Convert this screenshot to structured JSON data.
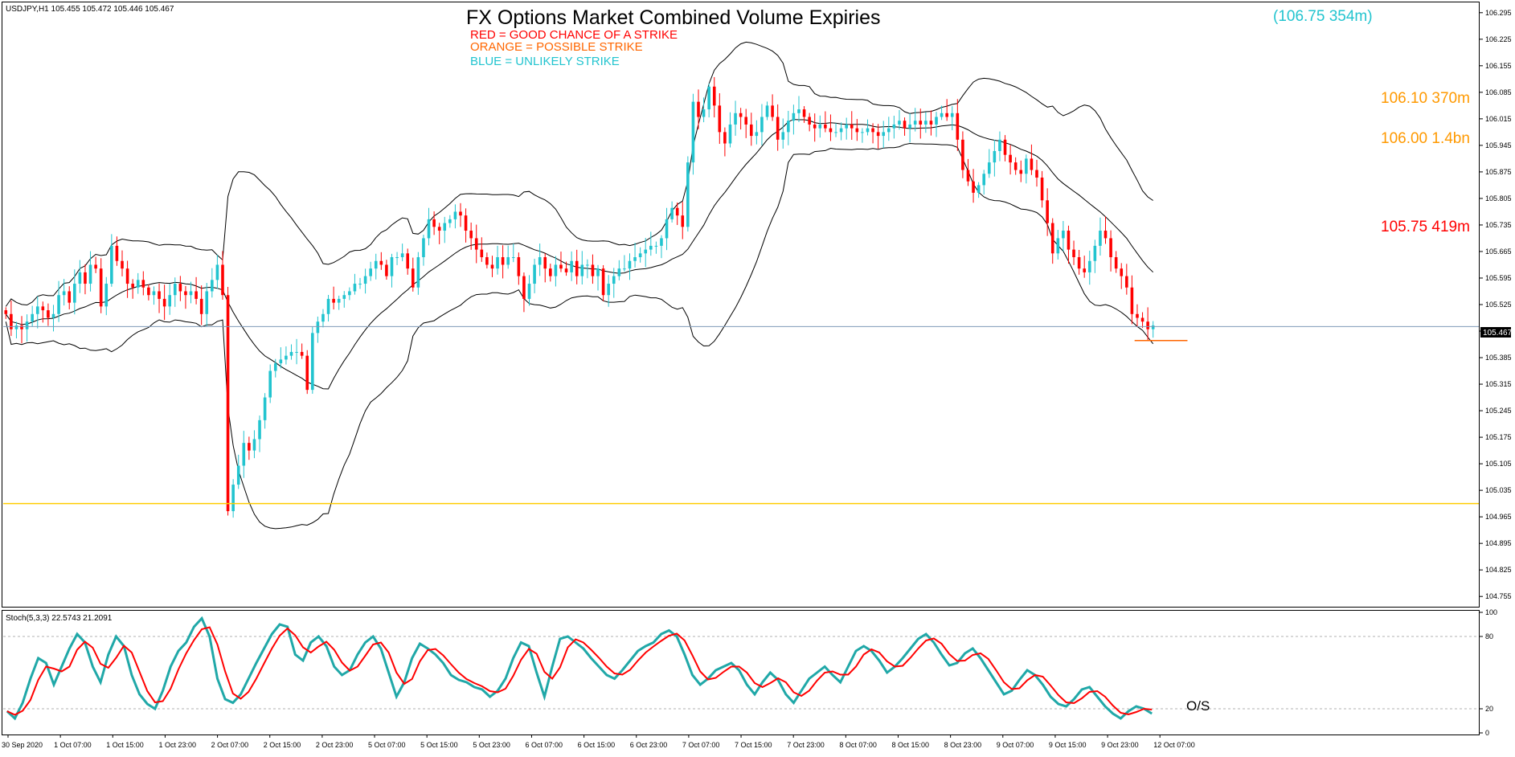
{
  "chart_data": {
    "type": "candlestick",
    "symbol_header": "USDJPY,H1  105.455 105.472 105.446 105.467",
    "title": "FX Options Market Combined Volume Expiries",
    "legend": [
      {
        "label": "RED = GOOD CHANCE OF A STRIKE",
        "color": "#ff0000"
      },
      {
        "label": "ORANGE = POSSIBLE STRIKE",
        "color": "#ff6600"
      },
      {
        "label": "BLUE = UNLIKELY STRIKE",
        "color": "#22c4cf"
      }
    ],
    "strike_labels": [
      {
        "text": "(106.75 354m)",
        "level": 106.75,
        "color": "#22c4cf"
      },
      {
        "text": "106.10 370m",
        "level": 106.1,
        "color": "#ff9900"
      },
      {
        "text": "106.00 1.4bn",
        "level": 106.0,
        "color": "#ff9900"
      },
      {
        "text": "105.75 419m",
        "level": 105.75,
        "color": "#ff0000"
      }
    ],
    "current_price": "105.467",
    "current_price_value": 105.467,
    "yellow_line_level": 105.0,
    "price_ylim": [
      104.73,
      106.32
    ],
    "price_ticks": [
      "106.295",
      "106.225",
      "106.155",
      "106.085",
      "106.015",
      "105.945",
      "105.875",
      "105.805",
      "105.735",
      "105.665",
      "105.595",
      "105.525",
      "105.455",
      "105.385",
      "105.315",
      "105.245",
      "105.175",
      "105.105",
      "105.035",
      "104.965",
      "104.895",
      "104.825",
      "104.755"
    ],
    "x_ticks": [
      "30 Sep 2020",
      "1 Oct 07:00",
      "1 Oct 15:00",
      "1 Oct 23:00",
      "2 Oct 07:00",
      "2 Oct 15:00",
      "2 Oct 23:00",
      "5 Oct 07:00",
      "5 Oct 15:00",
      "5 Oct 23:00",
      "6 Oct 07:00",
      "6 Oct 15:00",
      "6 Oct 23:00",
      "7 Oct 07:00",
      "7 Oct 15:00",
      "7 Oct 23:00",
      "8 Oct 07:00",
      "8 Oct 15:00",
      "8 Oct 23:00",
      "9 Oct 07:00",
      "9 Oct 15:00",
      "9 Oct 23:00",
      "12 Oct 07:00"
    ],
    "close_series": [
      105.5,
      105.46,
      105.47,
      105.46,
      105.48,
      105.5,
      105.52,
      105.51,
      105.49,
      105.5,
      105.55,
      105.56,
      105.53,
      105.58,
      105.61,
      105.58,
      105.63,
      105.62,
      105.52,
      105.58,
      105.68,
      105.64,
      105.62,
      105.58,
      105.57,
      105.59,
      105.57,
      105.55,
      105.56,
      105.54,
      105.52,
      105.55,
      105.58,
      105.56,
      105.55,
      105.56,
      105.54,
      105.5,
      105.56,
      105.59,
      105.63,
      105.55,
      104.98,
      105.05,
      105.1,
      105.16,
      105.14,
      105.17,
      105.22,
      105.28,
      105.35,
      105.37,
      105.38,
      105.39,
      105.4,
      105.4,
      105.39,
      105.3,
      105.45,
      105.48,
      105.5,
      105.54,
      105.53,
      105.54,
      105.55,
      105.56,
      105.58,
      105.58,
      105.6,
      105.62,
      105.64,
      105.63,
      105.6,
      105.65,
      105.65,
      105.66,
      105.62,
      105.57,
      105.65,
      105.7,
      105.75,
      105.73,
      105.72,
      105.74,
      105.75,
      105.77,
      105.76,
      105.72,
      105.7,
      105.67,
      105.65,
      105.63,
      105.62,
      105.65,
      105.63,
      105.65,
      105.65,
      105.6,
      105.54,
      105.58,
      105.63,
      105.65,
      105.62,
      105.6,
      105.63,
      105.62,
      105.61,
      105.64,
      105.6,
      105.63,
      105.63,
      105.6,
      105.62,
      105.55,
      105.58,
      105.6,
      105.62,
      105.62,
      105.64,
      105.65,
      105.66,
      105.67,
      105.68,
      105.68,
      105.7,
      105.75,
      105.78,
      105.76,
      105.73,
      105.9,
      106.06,
      106.02,
      106.04,
      106.1,
      106.05,
      105.98,
      105.95,
      106.0,
      106.03,
      106.02,
      106.0,
      105.97,
      105.98,
      106.02,
      106.05,
      106.02,
      105.96,
      105.98,
      106.01,
      106.03,
      106.04,
      106.02,
      106.0,
      105.99,
      106.0,
      105.99,
      105.98,
      105.98,
      105.99,
      106.0,
      105.99,
      105.98,
      105.98,
      105.99,
      105.98,
      105.97,
      105.98,
      105.99,
      106.0,
      106.01,
      105.99,
      106.0,
      106.01,
      106.0,
      106.01,
      106.0,
      106.02,
      106.03,
      106.02,
      106.03,
      105.96,
      105.88,
      105.85,
      105.82,
      105.84,
      105.87,
      105.9,
      105.93,
      105.96,
      105.92,
      105.9,
      105.88,
      105.87,
      105.91,
      105.88,
      105.86,
      105.8,
      105.74,
      105.66,
      105.7,
      105.72,
      105.67,
      105.65,
      105.62,
      105.61,
      105.64,
      105.68,
      105.72,
      105.7,
      105.65,
      105.62,
      105.6,
      105.57,
      105.5,
      105.49,
      105.48,
      105.46,
      105.47
    ]
  },
  "stoch": {
    "label": "Stoch(5,3,3) 22.5743 21.2091",
    "ticks": [
      "100",
      "80",
      "20",
      "0"
    ],
    "note": "O/S",
    "main_color": "#20a8a8",
    "signal_color": "#ff0000",
    "k_series": [
      18,
      12,
      25,
      45,
      62,
      58,
      40,
      55,
      70,
      82,
      75,
      55,
      42,
      65,
      80,
      72,
      48,
      32,
      24,
      20,
      35,
      55,
      68,
      75,
      88,
      95,
      80,
      45,
      28,
      25,
      32,
      45,
      58,
      70,
      82,
      90,
      88,
      65,
      60,
      75,
      80,
      72,
      55,
      48,
      52,
      65,
      75,
      80,
      70,
      50,
      30,
      42,
      62,
      74,
      70,
      65,
      58,
      48,
      44,
      42,
      38,
      36,
      30,
      35,
      45,
      62,
      75,
      72,
      50,
      30,
      55,
      78,
      80,
      75,
      70,
      62,
      55,
      48,
      45,
      52,
      60,
      68,
      72,
      75,
      82,
      85,
      80,
      65,
      48,
      40,
      45,
      52,
      55,
      58,
      52,
      40,
      32,
      42,
      50,
      44,
      32,
      25,
      35,
      45,
      50,
      55,
      48,
      42,
      55,
      68,
      72,
      68,
      60,
      50,
      55,
      62,
      70,
      78,
      82,
      75,
      65,
      56,
      58,
      66,
      70,
      62,
      52,
      42,
      32,
      35,
      44,
      52,
      48,
      40,
      30,
      24,
      22,
      28,
      36,
      38,
      30,
      22,
      16,
      12,
      18,
      22,
      20,
      16
    ]
  }
}
